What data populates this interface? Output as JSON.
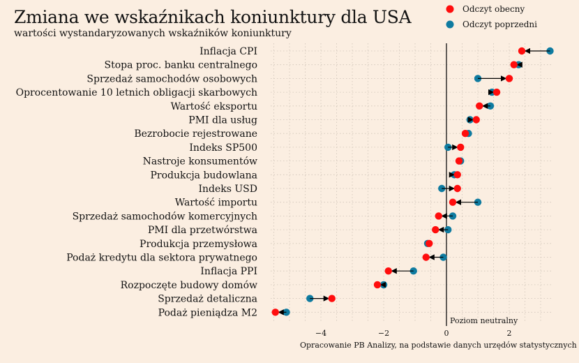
{
  "chart_data": {
    "type": "dumbbell",
    "title": "Zmiana we wskaźnikach koniunktury dla USA",
    "subtitle": "wartości wystandaryzowanych wskaźników koniunktury",
    "source": "Opracowanie PB Analizy, na podstawie danych urzędów statystycznych",
    "neutral_label": "Poziom neutralny",
    "xlim": [
      -5.8,
      3.5
    ],
    "xticks": [
      -4,
      -2,
      0,
      2
    ],
    "legend": {
      "position": "top-right",
      "current": "Odczyt obecny",
      "previous": "Odczyt poprzedni"
    },
    "colors": {
      "current": "#ff0d0d",
      "previous": "#0f7ba0",
      "arrow": "#000000",
      "grid": "#cfc4b8",
      "background": "#fbeee1"
    },
    "series": [
      {
        "name": "Odczyt obecny"
      },
      {
        "name": "Odczyt poprzedni"
      }
    ],
    "categories": [
      {
        "label": "Inflacja CPI",
        "current": 2.4,
        "previous": 3.3
      },
      {
        "label": "Stopa proc. banku centralnego",
        "current": 2.15,
        "previous": 2.3
      },
      {
        "label": "Sprzedaż samochodów osobowych",
        "current": 2.0,
        "previous": 1.0
      },
      {
        "label": "Oprocentowanie 10 letnich obligacji skarbowych",
        "current": 1.6,
        "previous": 1.45
      },
      {
        "label": "Wartość eksportu",
        "current": 1.05,
        "previous": 1.4
      },
      {
        "label": "PMI dla usług",
        "current": 0.95,
        "previous": 0.75
      },
      {
        "label": "Bezrobocie rejestrowane",
        "current": 0.6,
        "previous": 0.7
      },
      {
        "label": "Indeks SP500",
        "current": 0.45,
        "previous": 0.05
      },
      {
        "label": "Nastroje konsumentów",
        "current": 0.4,
        "previous": 0.45
      },
      {
        "label": "Produkcja budowlana",
        "current": 0.35,
        "previous": 0.25
      },
      {
        "label": "Indeks USD",
        "current": 0.35,
        "previous": -0.15
      },
      {
        "label": "Wartość importu",
        "current": 0.2,
        "previous": 1.0
      },
      {
        "label": "Sprzedaż samochodów komercyjnych",
        "current": -0.25,
        "previous": 0.2
      },
      {
        "label": "PMI dla przetwórstwa",
        "current": -0.35,
        "previous": 0.05
      },
      {
        "label": "Produkcja przemysłowa",
        "current": -0.55,
        "previous": -0.6
      },
      {
        "label": "Podaż kredytu dla sektora prywatnego",
        "current": -0.65,
        "previous": -0.1
      },
      {
        "label": "Inflacja PPI",
        "current": -1.85,
        "previous": -1.05
      },
      {
        "label": "Rozpoczęte budowy domów",
        "current": -2.2,
        "previous": -2.0
      },
      {
        "label": "Sprzedaż detaliczna",
        "current": -3.65,
        "previous": -4.35
      },
      {
        "label": "Podaż pieniądza M2",
        "current": -5.45,
        "previous": -5.1
      }
    ]
  }
}
